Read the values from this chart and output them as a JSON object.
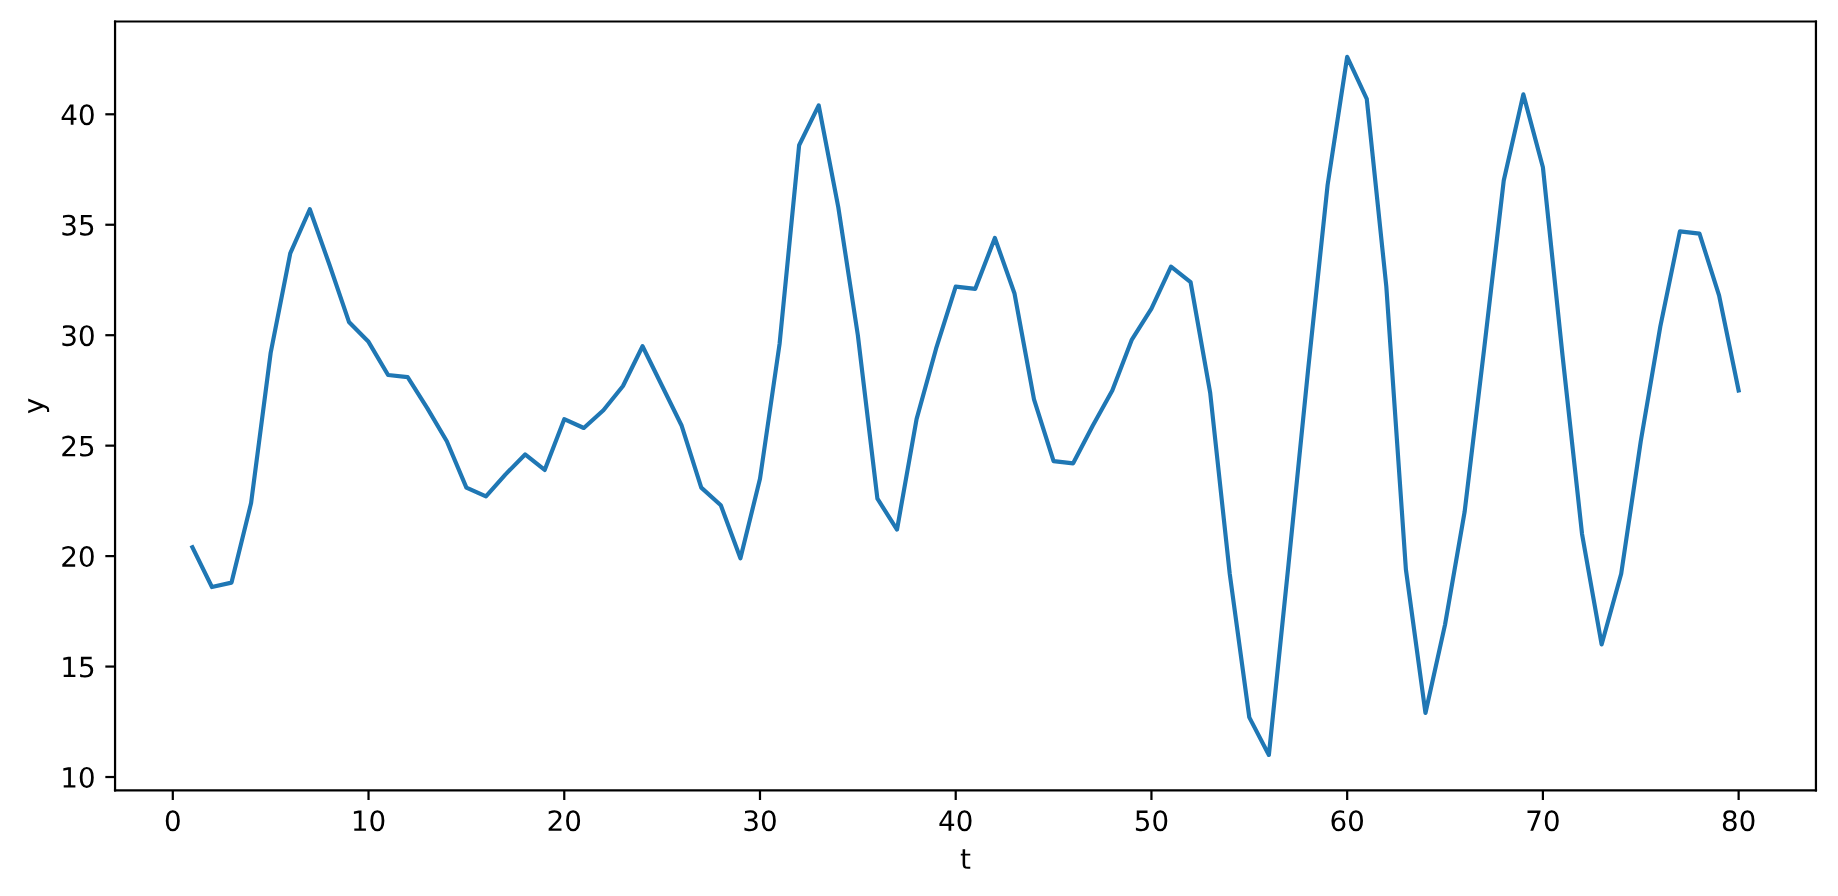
{
  "chart_data": {
    "type": "line",
    "xlabel": "t",
    "ylabel": "y",
    "x": [
      1,
      2,
      3,
      4,
      5,
      6,
      7,
      8,
      9,
      10,
      11,
      12,
      13,
      14,
      15,
      16,
      17,
      18,
      19,
      20,
      21,
      22,
      23,
      24,
      25,
      26,
      27,
      28,
      29,
      30,
      31,
      32,
      33,
      34,
      35,
      36,
      37,
      38,
      39,
      40,
      41,
      42,
      43,
      44,
      45,
      46,
      47,
      48,
      49,
      50,
      51,
      52,
      53,
      54,
      55,
      56,
      57,
      58,
      59,
      60,
      61,
      62,
      63,
      64,
      65,
      66,
      67,
      68,
      69,
      70,
      71,
      72,
      73,
      74,
      75,
      76,
      77,
      78,
      79,
      80
    ],
    "series": [
      {
        "color": "#1f77b4",
        "values": [
          20.4,
          18.6,
          18.8,
          22.4,
          29.2,
          33.7,
          35.7,
          33.2,
          30.6,
          29.7,
          28.2,
          28.1,
          26.7,
          25.2,
          23.1,
          22.7,
          23.7,
          24.6,
          23.9,
          26.2,
          25.8,
          26.6,
          27.7,
          29.5,
          27.7,
          25.9,
          23.1,
          22.3,
          19.9,
          23.5,
          29.6,
          38.6,
          40.4,
          35.8,
          30.0,
          22.6,
          21.2,
          26.2,
          29.4,
          32.2,
          32.1,
          34.4,
          31.9,
          27.1,
          24.3,
          24.2,
          25.9,
          27.5,
          29.8,
          31.2,
          33.1,
          32.4,
          27.4,
          19.2,
          12.7,
          11.0,
          19.6,
          28.4,
          36.8,
          42.6,
          40.7,
          32.2,
          19.4,
          12.9,
          16.9,
          22.0,
          29.4,
          37.0,
          40.9,
          37.6,
          29.1,
          21.0,
          16.0,
          19.2,
          25.2,
          30.4,
          34.7,
          34.6,
          31.8,
          27.5
        ]
      }
    ],
    "xlim": [
      -2.95,
      83.95
    ],
    "xticks": [
      0,
      10,
      20,
      30,
      40,
      50,
      60,
      70,
      80
    ],
    "ylim": [
      9.4,
      44.2
    ],
    "yticks": [
      10,
      15,
      20,
      25,
      30,
      35,
      40
    ],
    "grid": false,
    "marker": "none",
    "line_style": "solid"
  }
}
